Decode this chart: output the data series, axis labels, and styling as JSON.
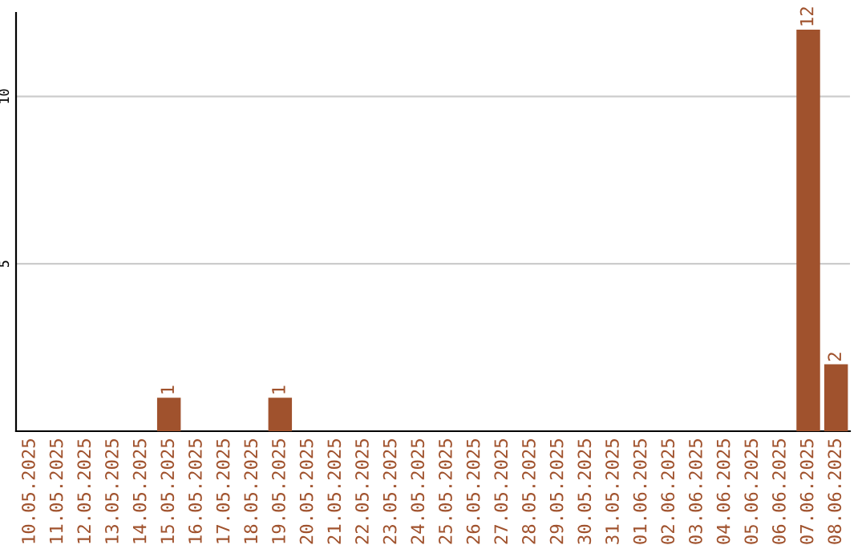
{
  "chart_data": {
    "type": "bar",
    "categories": [
      "10.05.2025",
      "11.05.2025",
      "12.05.2025",
      "13.05.2025",
      "14.05.2025",
      "15.05.2025",
      "16.05.2025",
      "17.05.2025",
      "18.05.2025",
      "19.05.2025",
      "20.05.2025",
      "21.05.2025",
      "22.05.2025",
      "23.05.2025",
      "24.05.2025",
      "25.05.2025",
      "26.05.2025",
      "27.05.2025",
      "28.05.2025",
      "29.05.2025",
      "30.05.2025",
      "31.05.2025",
      "01.06.2025",
      "02.06.2025",
      "03.06.2025",
      "04.06.2025",
      "05.06.2025",
      "06.06.2025",
      "07.06.2025",
      "08.06.2025"
    ],
    "values": [
      0,
      0,
      0,
      0,
      0,
      1,
      0,
      0,
      0,
      1,
      0,
      0,
      0,
      0,
      0,
      0,
      0,
      0,
      0,
      0,
      0,
      0,
      0,
      0,
      0,
      0,
      0,
      0,
      12,
      2
    ],
    "value_labels": [
      null,
      null,
      null,
      null,
      null,
      "1",
      null,
      null,
      null,
      "1",
      null,
      null,
      null,
      null,
      null,
      null,
      null,
      null,
      null,
      null,
      null,
      null,
      null,
      null,
      null,
      null,
      null,
      null,
      "12",
      "2"
    ],
    "color": "#a0522d",
    "ylim": [
      0,
      12.5
    ],
    "yticks": [
      5,
      10
    ],
    "grid": "y"
  }
}
